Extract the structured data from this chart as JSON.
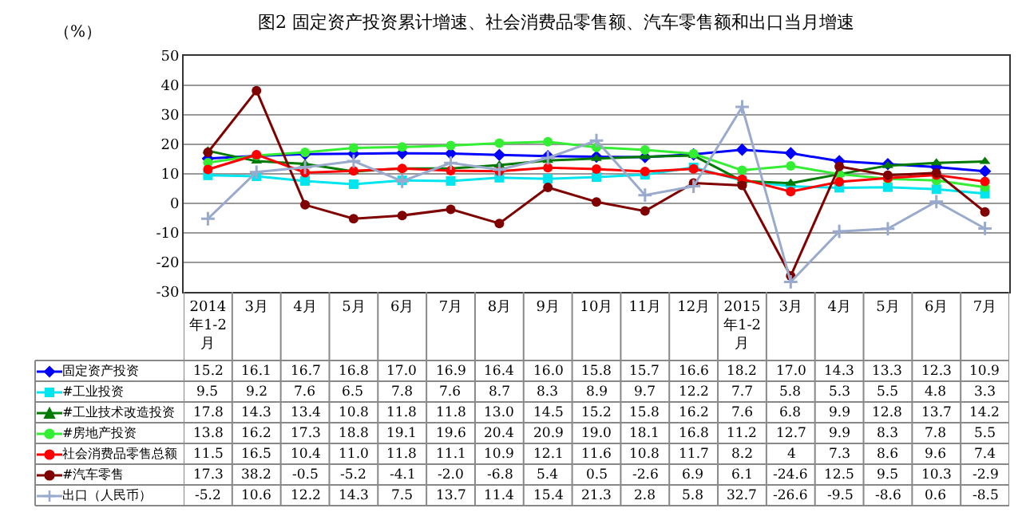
{
  "chart_data": {
    "type": "line",
    "title": "图2 固定资产投资累计增速、社会消费品零售额、汽车零售额和出口当月增速",
    "ylabel": "（%）",
    "categories": [
      "2014年1-2月",
      "3月",
      "4月",
      "5月",
      "6月",
      "7月",
      "8月",
      "9月",
      "10月",
      "11月",
      "12月",
      "2015年1-2月",
      "3月",
      "4月",
      "5月",
      "6月",
      "7月"
    ],
    "ylim": [
      -30,
      50
    ],
    "yticks": [
      -30,
      -20,
      -10,
      0,
      10,
      20,
      30,
      40,
      50
    ],
    "grid": "y",
    "legend": "bottom",
    "line_style": "solid",
    "series": [
      {
        "name": "固定资产投资",
        "color": "#0000ff",
        "marker": "diamond",
        "values": [
          15.2,
          16.1,
          16.7,
          16.8,
          17.0,
          16.9,
          16.4,
          16.0,
          15.8,
          15.7,
          16.6,
          18.2,
          17.0,
          14.3,
          13.3,
          12.3,
          10.9
        ],
        "value_labels": [
          "15.2",
          "16.1",
          "16.7",
          "16.8",
          "17.0",
          "16.9",
          "16.4",
          "16.0",
          "15.8",
          "15.7",
          "16.6",
          "18.2",
          "17.0",
          "14.3",
          "13.3",
          "12.3",
          "10.9"
        ]
      },
      {
        "name": "#工业投资",
        "color": "#00e5ee",
        "marker": "square",
        "values": [
          9.5,
          9.2,
          7.6,
          6.5,
          7.8,
          7.6,
          8.7,
          8.3,
          8.9,
          9.7,
          12.2,
          7.7,
          5.8,
          5.3,
          5.5,
          4.8,
          3.3
        ],
        "value_labels": [
          "9.5",
          "9.2",
          "7.6",
          "6.5",
          "7.8",
          "7.6",
          "8.7",
          "8.3",
          "8.9",
          "9.7",
          "12.2",
          "7.7",
          "5.8",
          "5.3",
          "5.5",
          "4.8",
          "3.3"
        ]
      },
      {
        "name": "#工业技术改造投资",
        "color": "#007a00",
        "marker": "triangle",
        "values": [
          17.8,
          14.3,
          13.4,
          10.8,
          11.8,
          11.8,
          13.0,
          14.5,
          15.2,
          15.8,
          16.2,
          7.6,
          6.8,
          9.9,
          12.8,
          13.7,
          14.2
        ],
        "value_labels": [
          "17.8",
          "14.3",
          "13.4",
          "10.8",
          "11.8",
          "11.8",
          "13.0",
          "14.5",
          "15.2",
          "15.8",
          "16.2",
          "7.6",
          "6.8",
          "9.9",
          "12.8",
          "13.7",
          "14.2"
        ]
      },
      {
        "name": "#房地产投资",
        "color": "#33ee33",
        "marker": "circle",
        "values": [
          13.8,
          16.2,
          17.3,
          18.8,
          19.1,
          19.6,
          20.4,
          20.9,
          19.0,
          18.1,
          16.8,
          11.2,
          12.7,
          9.9,
          8.3,
          7.8,
          5.5
        ],
        "value_labels": [
          "13.8",
          "16.2",
          "17.3",
          "18.8",
          "19.1",
          "19.6",
          "20.4",
          "20.9",
          "19.0",
          "18.1",
          "16.8",
          "11.2",
          "12.7",
          "9.9",
          "8.3",
          "7.8",
          "5.5"
        ]
      },
      {
        "name": "社会消费品零售总额",
        "color": "#ff0000",
        "marker": "circle",
        "values": [
          11.5,
          16.5,
          10.4,
          11.0,
          11.8,
          11.1,
          10.9,
          12.1,
          11.6,
          10.8,
          11.7,
          8.2,
          4,
          7.3,
          8.6,
          9.6,
          7.4
        ],
        "value_labels": [
          "11.5",
          "16.5",
          "10.4",
          "11.0",
          "11.8",
          "11.1",
          "10.9",
          "12.1",
          "11.6",
          "10.8",
          "11.7",
          "8.2",
          "4",
          "7.3",
          "8.6",
          "9.6",
          "7.4"
        ]
      },
      {
        "name": "#汽车零售",
        "color": "#800000",
        "marker": "circle",
        "values": [
          17.3,
          38.2,
          -0.5,
          -5.2,
          -4.1,
          -2.0,
          -6.8,
          5.4,
          0.5,
          -2.6,
          6.9,
          6.1,
          -24.6,
          12.5,
          9.5,
          10.3,
          -2.9
        ],
        "value_labels": [
          "17.3",
          "38.2",
          "-0.5",
          "-5.2",
          "-4.1",
          "-2.0",
          "-6.8",
          "5.4",
          "0.5",
          "-2.6",
          "6.9",
          "6.1",
          "-24.6",
          "12.5",
          "9.5",
          "10.3",
          "-2.9"
        ]
      },
      {
        "name": "出口（人民币）",
        "color": "#99aacc",
        "marker": "cross",
        "values": [
          -5.2,
          10.6,
          12.2,
          14.3,
          7.5,
          13.7,
          11.4,
          15.4,
          21.3,
          2.8,
          5.8,
          32.7,
          -26.6,
          -9.5,
          -8.6,
          0.6,
          -8.5
        ],
        "value_labels": [
          "-5.2",
          "10.6",
          "12.2",
          "14.3",
          "7.5",
          "13.7",
          "11.4",
          "15.4",
          "21.3",
          "2.8",
          "5.8",
          "32.7",
          "-26.6",
          "-9.5",
          "-8.6",
          "0.6",
          "-8.5"
        ]
      }
    ]
  }
}
